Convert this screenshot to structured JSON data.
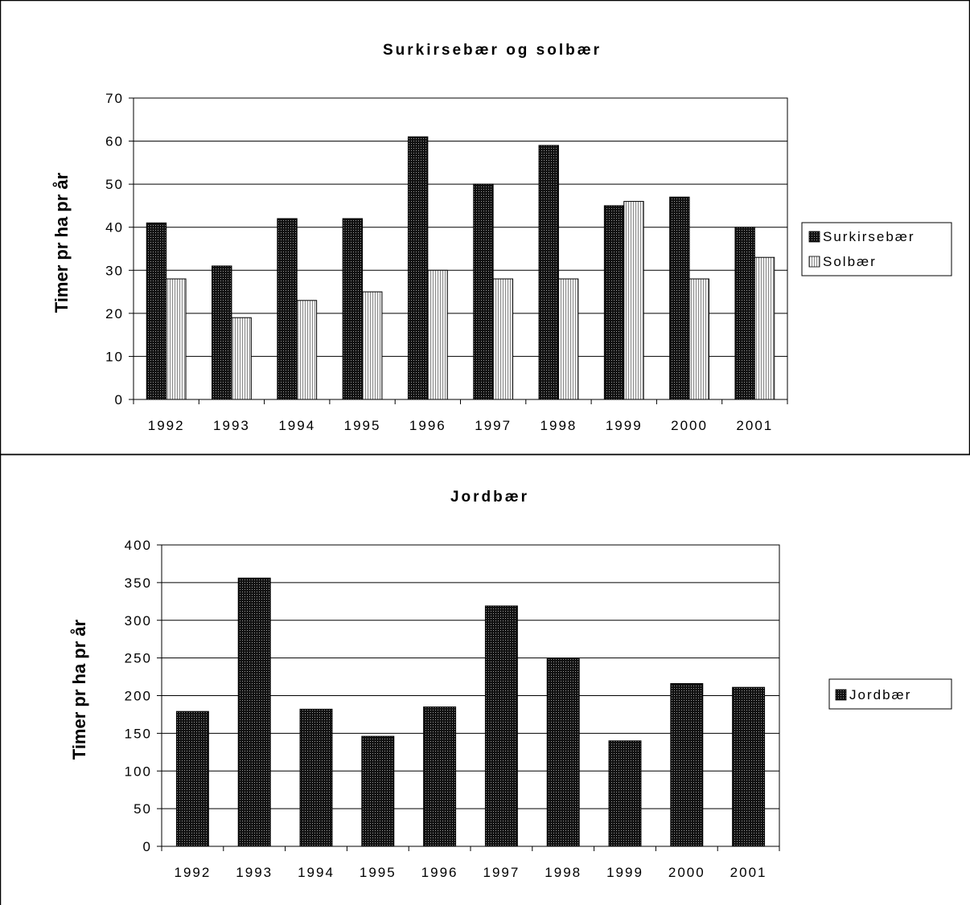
{
  "chart_data": [
    {
      "type": "bar",
      "title": "Surkirsebær og solbær",
      "xlabel": "",
      "ylabel": "Timer pr ha pr år",
      "categories": [
        "1992",
        "1993",
        "1994",
        "1995",
        "1996",
        "1997",
        "1998",
        "1999",
        "2000",
        "2001"
      ],
      "series": [
        {
          "name": "Surkirsebær",
          "values": [
            41,
            31,
            42,
            42,
            61,
            50,
            59,
            45,
            47,
            40
          ],
          "color": "#1a1a1a",
          "pattern": "dark-dots"
        },
        {
          "name": "Solbær",
          "values": [
            28,
            19,
            23,
            25,
            30,
            28,
            28,
            46,
            28,
            33
          ],
          "color": "#cccccc",
          "pattern": "light-vertical-lines"
        }
      ],
      "ylim": [
        0,
        70
      ],
      "yticks": [
        0,
        10,
        20,
        30,
        40,
        50,
        60,
        70
      ],
      "grid": true,
      "legend": "right"
    },
    {
      "type": "bar",
      "title": "Jordbær",
      "xlabel": "",
      "ylabel": "Timer pr ha pr år",
      "categories": [
        "1992",
        "1993",
        "1994",
        "1995",
        "1996",
        "1997",
        "1998",
        "1999",
        "2000",
        "2001"
      ],
      "series": [
        {
          "name": "Jordbær",
          "values": [
            179,
            356,
            182,
            146,
            185,
            319,
            249,
            140,
            216,
            211
          ],
          "color": "#1a1a1a",
          "pattern": "dark-dots"
        }
      ],
      "ylim": [
        0,
        400
      ],
      "yticks": [
        0,
        50,
        100,
        150,
        200,
        250,
        300,
        350,
        400
      ],
      "grid": true,
      "legend": "right"
    }
  ]
}
